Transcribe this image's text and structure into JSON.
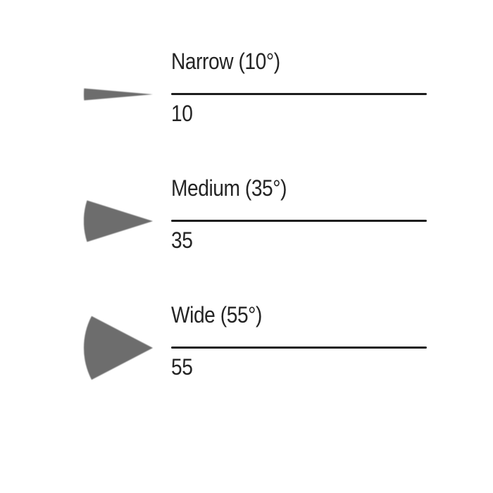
{
  "figure": {
    "background_color": "#ffffff",
    "wedge_color": "#6d6d6d",
    "line_color": "#1d1d1d",
    "text_color": "#242424",
    "rows": [
      {
        "label": "Narrow (10°)",
        "angle_deg": 10,
        "value": "10"
      },
      {
        "label": "Medium (35°)",
        "angle_deg": 35,
        "value": "35"
      },
      {
        "label": "Wide (55°)",
        "angle_deg": 55,
        "value": "55"
      }
    ]
  }
}
